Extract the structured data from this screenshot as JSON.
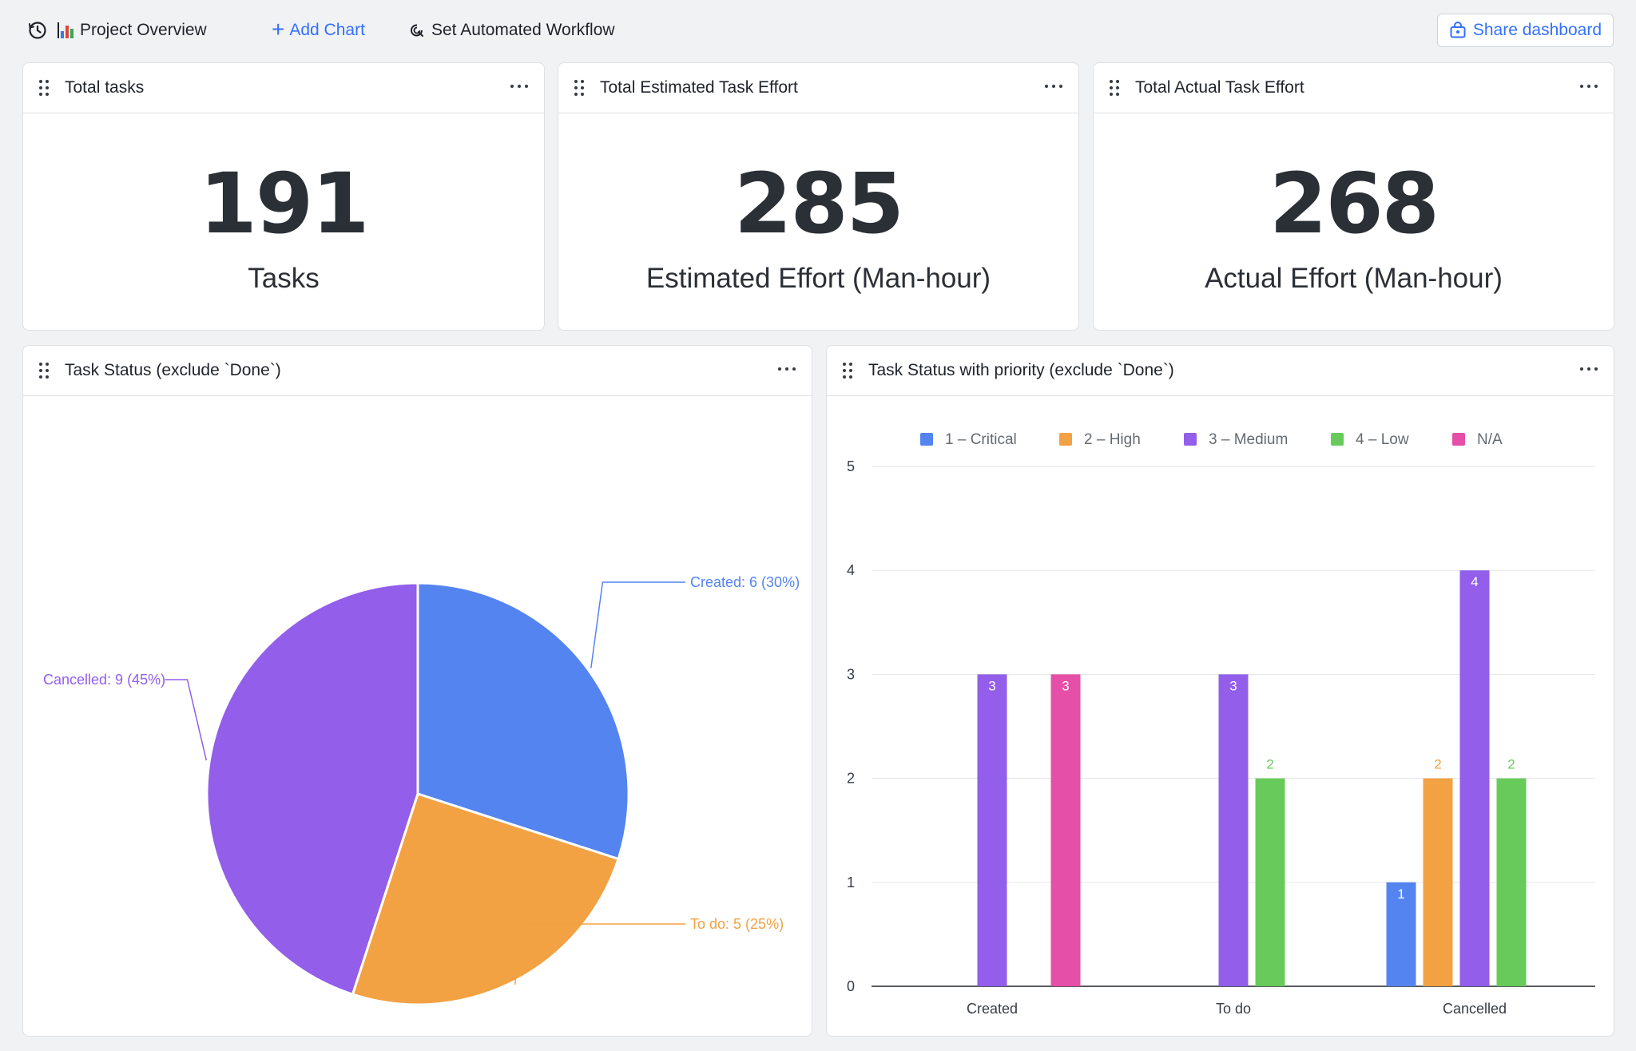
{
  "toolbar": {
    "history_icon": "history-icon",
    "title": "Project Overview",
    "title_icon": "bar-chart-emoji-icon",
    "add_chart": "Add Chart",
    "workflow": "Set Automated Workflow",
    "share": "Share dashboard"
  },
  "metrics": [
    {
      "title": "Total tasks",
      "value": "191",
      "label": "Tasks"
    },
    {
      "title": "Total Estimated Task Effort",
      "value": "285",
      "label": "Estimated Effort (Man-hour)"
    },
    {
      "title": "Total Actual Task Effort",
      "value": "268",
      "label": "Actual Effort (Man-hour)"
    }
  ],
  "pie_card": {
    "title": "Task Status (exclude `Done`)"
  },
  "bar_card": {
    "title": "Task Status with priority (exclude `Done`)"
  },
  "colors": {
    "critical": "#5484f0",
    "high": "#f2a143",
    "medium": "#925eea",
    "low": "#68ca5a",
    "na": "#e64fa7",
    "accent": "#3370ff"
  },
  "chart_data": [
    {
      "type": "pie",
      "slices": [
        {
          "name": "Created",
          "value": 6,
          "percent": 30,
          "label": "Created: 6 (30%)",
          "color": "#5484f0"
        },
        {
          "name": "To do",
          "value": 5,
          "percent": 25,
          "label": "To do: 5 (25%)",
          "color": "#f2a143"
        },
        {
          "name": "Cancelled",
          "value": 9,
          "percent": 45,
          "label": "Cancelled: 9 (45%)",
          "color": "#925eea"
        }
      ]
    },
    {
      "type": "bar",
      "categories": [
        "Created",
        "To do",
        "Cancelled"
      ],
      "ylim": [
        0,
        5
      ],
      "yticks": [
        "0",
        "1",
        "2",
        "3",
        "4",
        "5"
      ],
      "grid": true,
      "legend_position": "top",
      "series": [
        {
          "name": "1 – Critical",
          "color": "#5484f0",
          "values": [
            null,
            null,
            1
          ]
        },
        {
          "name": "2 – High",
          "color": "#f2a143",
          "values": [
            null,
            null,
            2
          ]
        },
        {
          "name": "3 – Medium",
          "color": "#925eea",
          "values": [
            3,
            3,
            4
          ]
        },
        {
          "name": "4 – Low",
          "color": "#68ca5a",
          "values": [
            null,
            2,
            2
          ]
        },
        {
          "name": "N/A",
          "color": "#e64fa7",
          "values": [
            3,
            null,
            null
          ]
        }
      ]
    }
  ]
}
